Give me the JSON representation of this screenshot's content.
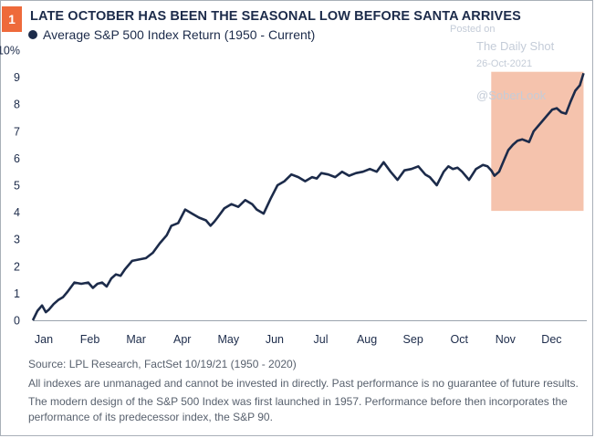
{
  "badge": "1",
  "header": {
    "title": "LATE OCTOBER HAS BEEN THE SEASONAL LOW BEFORE SANTA ARRIVES"
  },
  "watermark": {
    "posted": "Posted on",
    "source": "The Daily Shot",
    "date": "26-Oct-2021",
    "handle": "@SoberLook"
  },
  "footer": {
    "source": "Source: LPL Research, FactSet  10/19/21 (1950 - 2020)",
    "note1": "All indexes are unmanaged and cannot be invested in directly. Past performance is no guarantee of future results.",
    "note2": "The modern design of the S&P 500 Index was first launched in 1957. Performance before then incorporates the performance of its  predecessor index, the S&P 90."
  },
  "colors": {
    "line": "#1c2b4a",
    "highlight": "#f5c3ad",
    "badge": "#ee6a3b"
  },
  "chart_data": {
    "type": "line",
    "title": "LATE OCTOBER HAS BEEN THE SEASONAL LOW BEFORE SANTA ARRIVES",
    "ylabel": "",
    "xlabel": "",
    "ylim": [
      0,
      10
    ],
    "xlim": [
      0,
      12
    ],
    "grid": false,
    "legend_position": "top-left",
    "categories": [
      "Jan",
      "Feb",
      "Mar",
      "Apr",
      "May",
      "Jun",
      "Jul",
      "Aug",
      "Sep",
      "Oct",
      "Nov",
      "Dec"
    ],
    "y_ticks": [
      "0",
      "1",
      "2",
      "3",
      "4",
      "5",
      "6",
      "7",
      "8",
      "9",
      "10%"
    ],
    "highlight": {
      "x_start": 9.93,
      "x_end": 11.93,
      "y_start": 4.05,
      "y_end": 9.2
    },
    "series": [
      {
        "name": "Average S&P 500 Index Return (1950 - Current)",
        "x": [
          0.0,
          0.1,
          0.2,
          0.28,
          0.35,
          0.45,
          0.55,
          0.65,
          0.75,
          0.9,
          1.05,
          1.2,
          1.3,
          1.4,
          1.5,
          1.6,
          1.7,
          1.8,
          1.9,
          2.0,
          2.15,
          2.3,
          2.45,
          2.6,
          2.75,
          2.9,
          3.0,
          3.15,
          3.3,
          3.45,
          3.6,
          3.75,
          3.85,
          3.93,
          4.0,
          4.15,
          4.3,
          4.45,
          4.6,
          4.75,
          4.85,
          5.0,
          5.15,
          5.3,
          5.45,
          5.6,
          5.75,
          5.9,
          6.05,
          6.15,
          6.25,
          6.4,
          6.55,
          6.7,
          6.85,
          7.0,
          7.15,
          7.3,
          7.45,
          7.6,
          7.75,
          7.9,
          8.05,
          8.2,
          8.35,
          8.5,
          8.6,
          8.75,
          8.9,
          9.0,
          9.1,
          9.2,
          9.3,
          9.45,
          9.6,
          9.75,
          9.85,
          9.93,
          10.0,
          10.1,
          10.2,
          10.3,
          10.4,
          10.5,
          10.6,
          10.75,
          10.85,
          10.95,
          11.05,
          11.15,
          11.25,
          11.35,
          11.45,
          11.55,
          11.65,
          11.75,
          11.85,
          11.93
        ],
        "values": [
          0.0,
          0.35,
          0.55,
          0.3,
          0.4,
          0.6,
          0.75,
          0.85,
          1.05,
          1.4,
          1.35,
          1.4,
          1.2,
          1.35,
          1.4,
          1.25,
          1.55,
          1.7,
          1.65,
          1.9,
          2.2,
          2.25,
          2.3,
          2.5,
          2.85,
          3.15,
          3.5,
          3.6,
          4.1,
          3.95,
          3.8,
          3.7,
          3.5,
          3.65,
          3.8,
          4.15,
          4.3,
          4.2,
          4.45,
          4.3,
          4.1,
          3.95,
          4.5,
          5.0,
          5.15,
          5.4,
          5.3,
          5.15,
          5.3,
          5.25,
          5.45,
          5.4,
          5.3,
          5.5,
          5.35,
          5.45,
          5.5,
          5.6,
          5.5,
          5.85,
          5.5,
          5.2,
          5.55,
          5.6,
          5.7,
          5.4,
          5.3,
          5.0,
          5.5,
          5.7,
          5.6,
          5.65,
          5.5,
          5.2,
          5.6,
          5.75,
          5.7,
          5.55,
          5.35,
          5.5,
          5.9,
          6.3,
          6.5,
          6.65,
          6.7,
          6.6,
          7.0,
          7.2,
          7.4,
          7.6,
          7.8,
          7.85,
          7.7,
          7.65,
          8.1,
          8.5,
          8.7,
          9.15
        ]
      }
    ]
  }
}
